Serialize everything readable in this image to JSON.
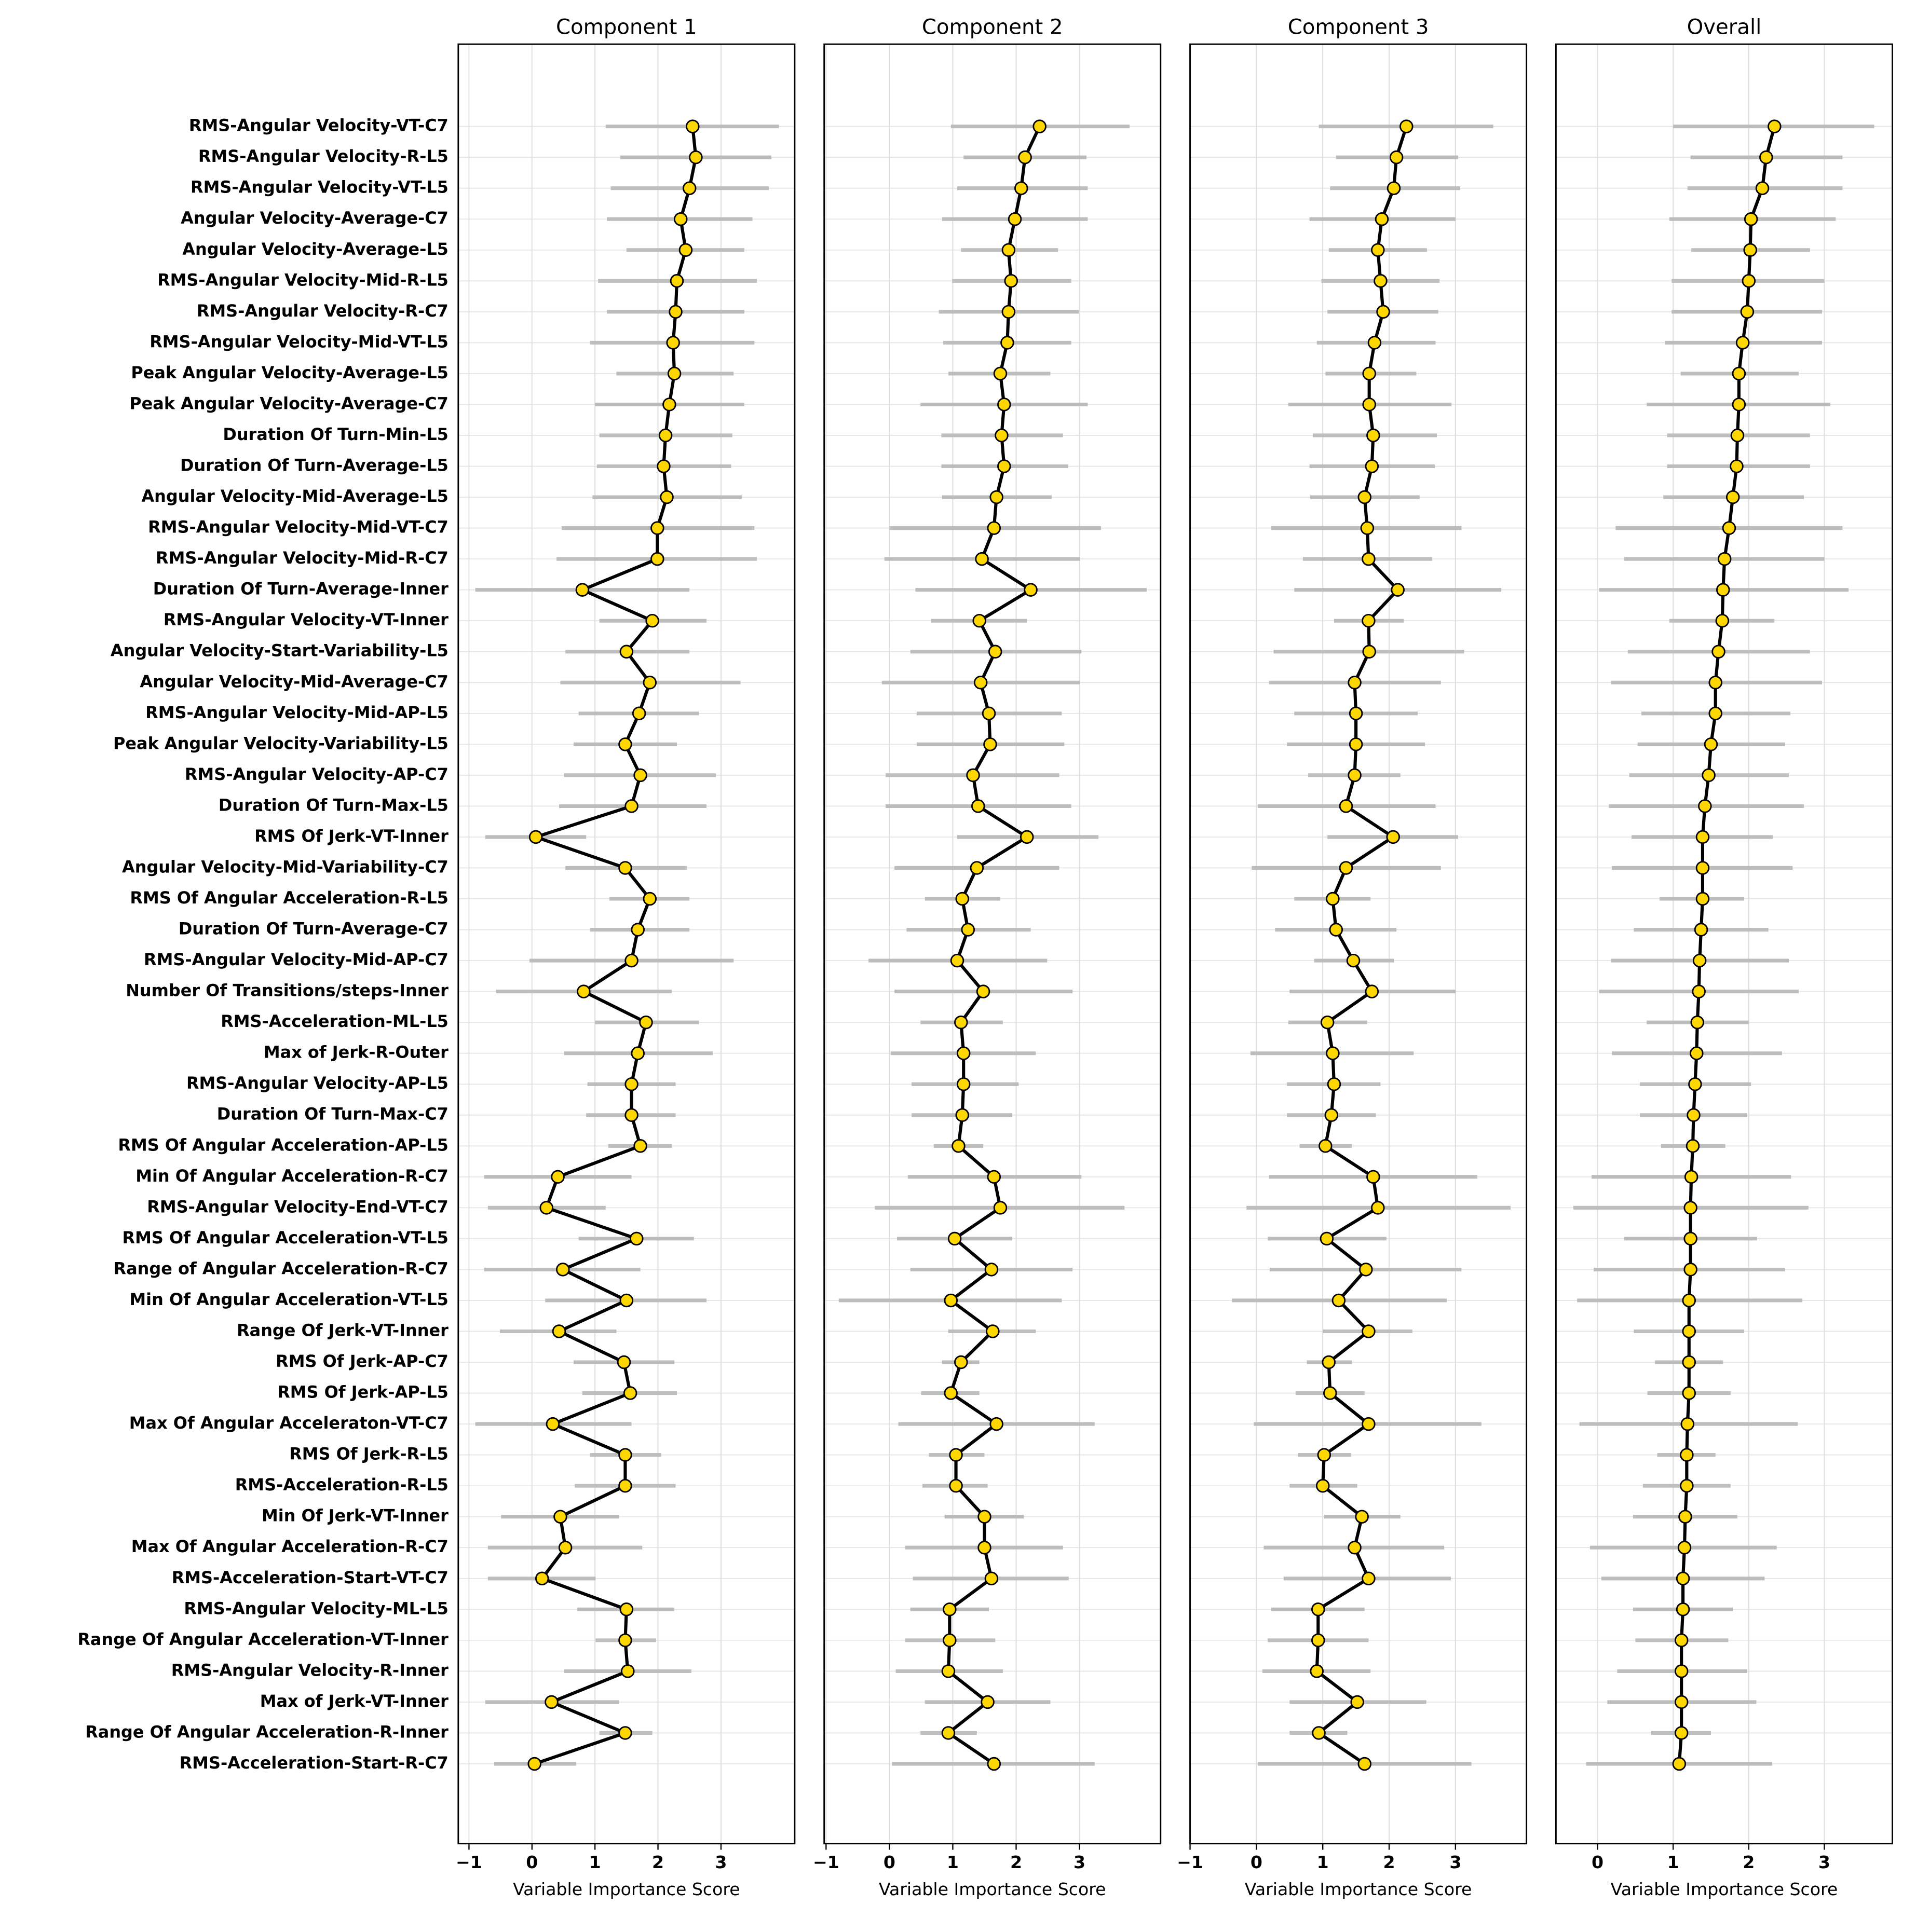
{
  "chart_data": [
    {
      "type": "line",
      "title": "Component 1",
      "xlabel": "Variable Importance Score",
      "categories": [
        "RMS-Angular Velocity-VT-C7",
        "RMS-Angular Velocity-R-L5",
        "RMS-Angular Velocity-VT-L5",
        "Angular Velocity-Average-C7",
        "Angular Velocity-Average-L5",
        "RMS-Angular Velocity-Mid-R-L5",
        "RMS-Angular Velocity-R-C7",
        "RMS-Angular Velocity-Mid-VT-L5",
        "Peak Angular Velocity-Average-L5",
        "Peak Angular Velocity-Average-C7",
        "Duration Of Turn-Min-L5",
        "Duration Of Turn-Average-L5",
        "Angular Velocity-Mid-Average-L5",
        "RMS-Angular Velocity-Mid-VT-C7",
        "RMS-Angular Velocity-Mid-R-C7",
        "Duration Of Turn-Average-Inner",
        "RMS-Angular Velocity-VT-Inner",
        "Angular Velocity-Start-Variability-L5",
        "Angular Velocity-Mid-Average-C7",
        "RMS-Angular Velocity-Mid-AP-L5",
        "Peak Angular Velocity-Variability-L5",
        "RMS-Angular Velocity-AP-C7",
        "Duration Of Turn-Max-L5",
        "RMS Of Jerk-VT-Inner",
        "Angular Velocity-Mid-Variability-C7",
        "RMS Of Angular Acceleration-R-L5",
        "Duration Of Turn-Average-C7",
        "RMS-Angular Velocity-Mid-AP-C7",
        "Number Of Transitions/steps-Inner",
        "RMS-Acceleration-ML-L5",
        "Max of Jerk-R-Outer",
        "RMS-Angular Velocity-AP-L5",
        "Duration Of Turn-Max-C7",
        "RMS Of Angular Acceleration-AP-L5",
        "Min Of Angular Acceleration-R-C7",
        "RMS-Angular Velocity-End-VT-C7",
        "RMS Of Angular Acceleration-VT-L5",
        "Range of Angular Acceleration-R-C7",
        "Min Of Angular Acceleration-VT-L5",
        "Range Of Jerk-VT-Inner",
        "RMS Of Jerk-AP-C7",
        "RMS Of Jerk-AP-L5",
        "Max Of Angular Acceleraton-VT-C7",
        "RMS Of Jerk-R-L5",
        "RMS-Acceleration-R-L5",
        "Min Of Jerk-VT-Inner",
        "Max Of Angular Acceleration-R-C7",
        "RMS-Acceleration-Start-VT-C7",
        "RMS-Angular Velocity-ML-L5",
        "Range Of Angular Acceleration-VT-Inner",
        "RMS-Angular Velocity-R-Inner",
        "Max of Jerk-VT-Inner",
        "Range Of Angular Acceleration-R-Inner",
        "RMS-Acceleration-Start-R-C7"
      ],
      "values": [
        2.55,
        2.6,
        2.5,
        2.36,
        2.44,
        2.3,
        2.28,
        2.24,
        2.26,
        2.18,
        2.12,
        2.09,
        2.14,
        1.99,
        1.99,
        0.8,
        1.91,
        1.5,
        1.87,
        1.7,
        1.48,
        1.72,
        1.58,
        0.06,
        1.48,
        1.87,
        1.68,
        1.58,
        0.82,
        1.81,
        1.68,
        1.58,
        1.58,
        1.72,
        0.41,
        0.23,
        1.66,
        0.49,
        1.5,
        0.43,
        1.46,
        1.56,
        0.33,
        1.48,
        1.48,
        0.45,
        0.53,
        0.16,
        1.5,
        1.48,
        1.52,
        0.31,
        1.48,
        0.04
      ],
      "lower": [
        1.17,
        1.4,
        1.25,
        1.19,
        1.5,
        1.05,
        1.19,
        0.92,
        1.34,
        1.0,
        1.07,
        1.03,
        0.96,
        0.47,
        0.39,
        -0.9,
        1.07,
        0.53,
        0.45,
        0.74,
        0.66,
        0.51,
        0.43,
        -0.74,
        0.53,
        1.23,
        0.92,
        -0.04,
        -0.57,
        1.0,
        0.51,
        0.88,
        0.86,
        1.21,
        -0.76,
        -0.7,
        0.74,
        -0.76,
        0.21,
        -0.51,
        0.66,
        0.8,
        -0.9,
        0.92,
        0.68,
        -0.49,
        -0.7,
        -0.7,
        0.72,
        1.01,
        0.51,
        -0.74,
        1.07,
        -0.6
      ],
      "upper": [
        3.92,
        3.8,
        3.76,
        3.5,
        3.37,
        3.57,
        3.37,
        3.53,
        3.2,
        3.37,
        3.18,
        3.16,
        3.33,
        3.53,
        3.57,
        2.5,
        2.77,
        2.5,
        3.31,
        2.65,
        2.3,
        2.92,
        2.77,
        0.86,
        2.46,
        2.5,
        2.5,
        3.2,
        2.22,
        2.65,
        2.87,
        2.28,
        2.28,
        2.22,
        1.58,
        1.17,
        2.57,
        1.72,
        2.77,
        1.34,
        2.26,
        2.3,
        1.58,
        2.05,
        2.28,
        1.38,
        1.75,
        1.01,
        2.26,
        1.97,
        2.53,
        1.38,
        1.91,
        0.7
      ],
      "xlim": [
        -1.17,
        4.17
      ],
      "xticks": [
        {
          "value": -1,
          "label": "−1"
        },
        0,
        1,
        2,
        3
      ],
      "grid": true
    },
    {
      "type": "line",
      "title": "Component 2",
      "xlabel": "Variable Importance Score",
      "values": [
        2.37,
        2.14,
        2.08,
        1.98,
        1.88,
        1.92,
        1.88,
        1.86,
        1.75,
        1.81,
        1.77,
        1.81,
        1.69,
        1.65,
        1.46,
        2.23,
        1.42,
        1.67,
        1.44,
        1.57,
        1.59,
        1.32,
        1.4,
        2.17,
        1.38,
        1.15,
        1.24,
        1.07,
        1.48,
        1.13,
        1.17,
        1.17,
        1.15,
        1.09,
        1.65,
        1.75,
        1.03,
        1.61,
        0.97,
        1.63,
        1.13,
        0.97,
        1.69,
        1.05,
        1.05,
        1.5,
        1.5,
        1.61,
        0.95,
        0.95,
        0.93,
        1.55,
        0.93,
        1.65
      ],
      "lower": [
        0.97,
        1.17,
        1.07,
        0.83,
        1.13,
        0.99,
        0.78,
        0.85,
        0.93,
        0.49,
        0.82,
        0.82,
        0.83,
        0,
        -0.08,
        0.41,
        0.66,
        0.33,
        -0.12,
        0.43,
        0.43,
        -0.06,
        -0.06,
        1.07,
        0.08,
        0.56,
        0.27,
        -0.33,
        0.08,
        0.49,
        0.02,
        0.35,
        0.35,
        0.7,
        0.29,
        -0.23,
        0.12,
        0.33,
        -0.8,
        0.93,
        0.83,
        0.5,
        0.14,
        0.62,
        0.52,
        0.87,
        0.25,
        0.37,
        0.33,
        0.25,
        0.1,
        0.56,
        0.49,
        0.04
      ],
      "upper": [
        3.79,
        3.11,
        3.13,
        3.13,
        2.66,
        2.87,
        2.99,
        2.87,
        2.54,
        3.13,
        2.74,
        2.82,
        2.56,
        3.34,
        3.01,
        4.06,
        2.17,
        3.03,
        3.01,
        2.72,
        2.76,
        2.68,
        2.87,
        3.3,
        2.68,
        1.75,
        2.23,
        2.49,
        2.89,
        1.79,
        2.31,
        2.04,
        1.94,
        1.48,
        3.03,
        3.71,
        1.94,
        2.89,
        2.72,
        2.31,
        1.42,
        1.42,
        3.24,
        1.5,
        1.55,
        2.12,
        2.74,
        2.83,
        1.57,
        1.67,
        1.79,
        2.54,
        1.38,
        3.24
      ],
      "xlim": [
        -1.03,
        4.28
      ],
      "xticks": [
        {
          "value": -1,
          "label": "−1"
        },
        0,
        1,
        2,
        3
      ],
      "grid": true
    },
    {
      "type": "line",
      "title": "Component 3",
      "xlabel": "Variable Importance Score",
      "values": [
        2.26,
        2.11,
        2.07,
        1.89,
        1.83,
        1.87,
        1.91,
        1.78,
        1.7,
        1.7,
        1.76,
        1.74,
        1.63,
        1.67,
        1.69,
        2.13,
        1.69,
        1.7,
        1.48,
        1.5,
        1.5,
        1.48,
        1.35,
        2.06,
        1.35,
        1.15,
        1.2,
        1.46,
        1.74,
        1.07,
        1.15,
        1.17,
        1.13,
        1.04,
        1.76,
        1.83,
        1.06,
        1.65,
        1.24,
        1.69,
        1.09,
        1.11,
        1.69,
        1.02,
        1.0,
        1.59,
        1.48,
        1.69,
        0.93,
        0.93,
        0.91,
        1.52,
        0.94,
        1.63
      ],
      "lower": [
        0.94,
        1.2,
        1.11,
        0.8,
        1.09,
        0.98,
        1.07,
        0.91,
        1.04,
        0.48,
        0.85,
        0.8,
        0.81,
        0.22,
        0.7,
        0.57,
        1.17,
        0.26,
        0.19,
        0.57,
        0.46,
        0.78,
        0.02,
        1.07,
        -0.07,
        0.57,
        0.28,
        0.87,
        0.5,
        0.48,
        -0.09,
        0.46,
        0.46,
        0.65,
        0.19,
        -0.15,
        0.17,
        0.2,
        -0.37,
        1.0,
        0.76,
        0.59,
        -0.04,
        0.63,
        0.5,
        1.02,
        0.11,
        0.41,
        0.22,
        0.17,
        0.09,
        0.5,
        0.5,
        0.02
      ],
      "upper": [
        3.57,
        3.04,
        3.07,
        3.0,
        2.57,
        2.76,
        2.74,
        2.7,
        2.41,
        2.94,
        2.72,
        2.69,
        2.46,
        3.09,
        2.65,
        3.69,
        2.22,
        3.13,
        2.78,
        2.43,
        2.54,
        2.17,
        2.7,
        3.04,
        2.78,
        1.72,
        2.11,
        2.07,
        3.0,
        1.67,
        2.37,
        1.87,
        1.8,
        1.44,
        3.33,
        3.83,
        1.96,
        3.09,
        2.87,
        2.35,
        1.44,
        1.63,
        3.39,
        1.43,
        1.52,
        2.17,
        2.83,
        2.93,
        1.63,
        1.69,
        1.72,
        2.56,
        1.37,
        3.24
      ],
      "xlim": [
        -1.0,
        4.07
      ],
      "xticks": [
        {
          "value": -1,
          "label": "−1"
        },
        0,
        1,
        2,
        3
      ],
      "grid": true
    },
    {
      "type": "line",
      "title": "Overall",
      "xlabel": "Variable Importance Score",
      "values": [
        2.34,
        2.23,
        2.18,
        2.03,
        2.02,
        2.0,
        1.98,
        1.92,
        1.87,
        1.87,
        1.85,
        1.84,
        1.79,
        1.74,
        1.68,
        1.66,
        1.65,
        1.6,
        1.56,
        1.56,
        1.5,
        1.47,
        1.42,
        1.39,
        1.39,
        1.39,
        1.37,
        1.35,
        1.34,
        1.32,
        1.31,
        1.29,
        1.27,
        1.26,
        1.24,
        1.23,
        1.23,
        1.23,
        1.21,
        1.21,
        1.21,
        1.21,
        1.19,
        1.18,
        1.18,
        1.16,
        1.15,
        1.13,
        1.13,
        1.11,
        1.11,
        1.11,
        1.11,
        1.08
      ],
      "lower": [
        1.0,
        1.23,
        1.19,
        0.95,
        1.24,
        0.98,
        0.98,
        0.89,
        1.1,
        0.65,
        0.92,
        0.92,
        0.87,
        0.24,
        0.35,
        0.02,
        0.95,
        0.4,
        0.18,
        0.58,
        0.53,
        0.42,
        0.15,
        0.45,
        0.19,
        0.82,
        0.48,
        0.18,
        0.02,
        0.65,
        0.19,
        0.56,
        0.56,
        0.84,
        -0.08,
        -0.32,
        0.35,
        -0.05,
        -0.27,
        0.48,
        0.76,
        0.66,
        -0.24,
        0.79,
        0.6,
        0.47,
        -0.1,
        0.05,
        0.47,
        0.5,
        0.26,
        0.13,
        0.71,
        -0.15
      ],
      "upper": [
        3.66,
        3.24,
        3.24,
        3.15,
        2.81,
        3.0,
        2.97,
        2.97,
        2.66,
        3.08,
        2.81,
        2.81,
        2.73,
        3.24,
        3.0,
        3.32,
        2.34,
        2.81,
        2.97,
        2.55,
        2.48,
        2.53,
        2.73,
        2.32,
        2.58,
        1.94,
        2.26,
        2.53,
        2.66,
        2.0,
        2.44,
        2.03,
        1.98,
        1.69,
        2.56,
        2.79,
        2.11,
        2.48,
        2.71,
        1.94,
        1.66,
        1.76,
        2.65,
        1.56,
        1.76,
        1.85,
        2.37,
        2.21,
        1.79,
        1.73,
        1.98,
        2.1,
        1.5,
        2.31
      ],
      "xlim": [
        -0.55,
        3.9
      ],
      "xticks": [
        0,
        1,
        2,
        3
      ],
      "grid": true
    }
  ]
}
